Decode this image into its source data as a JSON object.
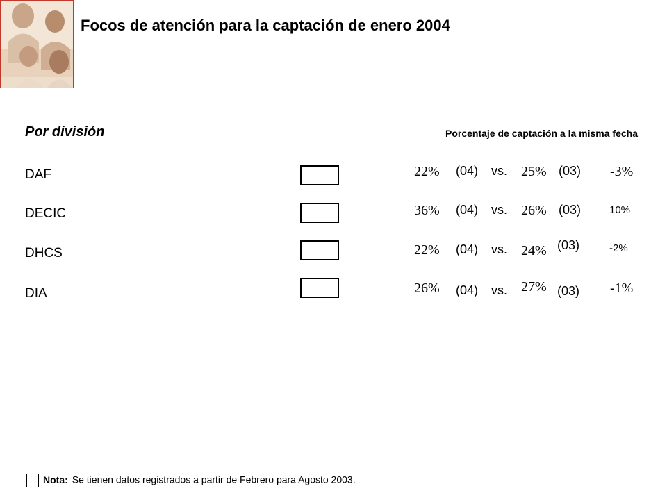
{
  "header": {
    "title": "Focos de atención para la captación de enero 2004"
  },
  "section": {
    "title": "Por división",
    "column_header": "Porcentaje de captación a la misma fecha"
  },
  "rows": [
    {
      "division": "DAF",
      "current": "22%",
      "current_tag": "(04)",
      "vs": "vs.",
      "previous": "25%",
      "previous_tag": "(03)",
      "difference": "-3%"
    },
    {
      "division": "DECIC",
      "current": "36%",
      "current_tag": "(04)",
      "vs": "vs.",
      "previous": "26%",
      "previous_tag": "(03)",
      "difference": "10%"
    },
    {
      "division": "DHCS",
      "current": "22%",
      "current_tag": "(04)",
      "vs": "vs.",
      "previous": "24%",
      "previous_tag": "(03)",
      "difference": "-2%"
    },
    {
      "division": "DIA",
      "current": "26%",
      "current_tag": "(04)",
      "vs": "vs.",
      "previous": "27%",
      "previous_tag": "(03)",
      "difference": "-1%"
    }
  ],
  "note": {
    "label": "Nota:",
    "text": "Se tienen datos registrados a partir de Febrero para Agosto 2003."
  },
  "colors": {
    "photo_border": "#c0392b",
    "text": "#000000",
    "background": "#ffffff"
  }
}
